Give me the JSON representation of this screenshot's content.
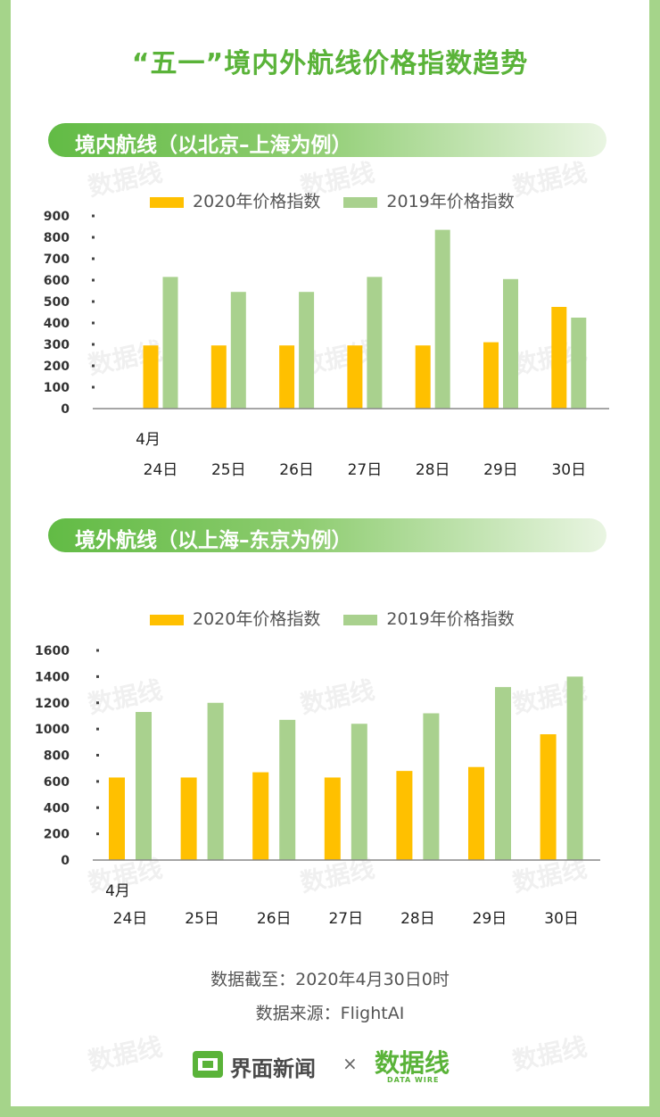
{
  "title": "“五一”境内外航线价格指数趋势",
  "section1": {
    "heading": "境内航线（以北京–上海为例）"
  },
  "section2": {
    "heading": "境外航线（以上海–东京为例）"
  },
  "legend": {
    "s2020": "2020年价格指数",
    "s2019": "2019年价格指数"
  },
  "colors": {
    "s2020": "#ffc000",
    "s2019": "#a9d18e",
    "accent": "#5ab339"
  },
  "chart_data": [
    {
      "type": "bar",
      "title": "境内航线（以北京–上海为例）",
      "month_label": "4月",
      "categories": [
        "24日",
        "25日",
        "26日",
        "27日",
        "28日",
        "29日",
        "30日"
      ],
      "series": [
        {
          "name": "2020年价格指数",
          "values": [
            295,
            295,
            295,
            295,
            295,
            310,
            475
          ]
        },
        {
          "name": "2019年价格指数",
          "values": [
            615,
            545,
            545,
            615,
            835,
            605,
            425
          ]
        }
      ],
      "yticks": [
        0,
        100,
        200,
        300,
        400,
        500,
        600,
        700,
        800,
        900
      ],
      "ylim": [
        0,
        900
      ],
      "legend_position": "top"
    },
    {
      "type": "bar",
      "title": "境外航线（以上海–东京为例）",
      "month_label": "4月",
      "categories": [
        "24日",
        "25日",
        "26日",
        "27日",
        "28日",
        "29日",
        "30日"
      ],
      "series": [
        {
          "name": "2020年价格指数",
          "values": [
            630,
            630,
            670,
            630,
            680,
            710,
            960
          ]
        },
        {
          "name": "2019年价格指数",
          "values": [
            1130,
            1200,
            1070,
            1040,
            1120,
            1320,
            1400
          ]
        }
      ],
      "yticks": [
        0,
        200,
        400,
        600,
        800,
        1000,
        1200,
        1400,
        1600
      ],
      "ylim": [
        0,
        1600
      ],
      "legend_position": "top"
    }
  ],
  "footer": {
    "cutoff": "数据截至：2020年4月30日0时",
    "source": "数据来源：FlightAI"
  },
  "logos": {
    "jiemian": "界面新闻",
    "times": "×",
    "shujuxian": "数据线",
    "datawire": "DATA WIRE"
  },
  "watermark": "数据线"
}
